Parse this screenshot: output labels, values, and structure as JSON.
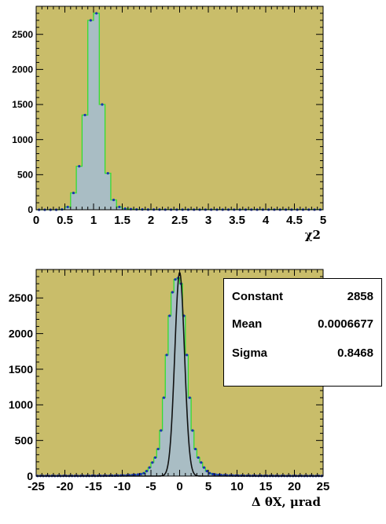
{
  "colors": {
    "plot_background": "#c9bd6a",
    "hist_fill": "#a9bdc4",
    "hist_line": "#33dd33",
    "points": "#1c33b0",
    "fit_line": "#111111"
  },
  "chart_data": [
    {
      "type": "histogram",
      "xlabel": "χ2",
      "ylabel": "",
      "xlim": [
        0,
        5
      ],
      "ylim": [
        0,
        2900
      ],
      "x_ticks": [
        0,
        0.5,
        1,
        1.5,
        2,
        2.5,
        3,
        3.5,
        4,
        4.5,
        5
      ],
      "x_tick_labels": [
        "0",
        "0.5",
        "1",
        "1.5",
        "2",
        "2.5",
        "3",
        "3.5",
        "4",
        "4.5",
        "5"
      ],
      "y_ticks": [
        0,
        500,
        1000,
        1500,
        2000,
        2500
      ],
      "y_tick_labels": [
        "0",
        "500",
        "1000",
        "1500",
        "2000",
        "2500"
      ],
      "bin_width": 0.1,
      "bin_centers": [
        0.05,
        0.15,
        0.25,
        0.35,
        0.45,
        0.55,
        0.65,
        0.75,
        0.85,
        0.95,
        1.05,
        1.15,
        1.25,
        1.35,
        1.45,
        1.55,
        1.65,
        1.75,
        1.85,
        1.95,
        2.05,
        2.15,
        2.25,
        2.35,
        2.45,
        2.55,
        2.65,
        2.75,
        2.85,
        2.95,
        3.05,
        3.15,
        3.25,
        3.35,
        3.45,
        3.55,
        3.65,
        3.75,
        3.85,
        3.95,
        4.05,
        4.15,
        4.25,
        4.35,
        4.45,
        4.55,
        4.65,
        4.75,
        4.85,
        4.95
      ],
      "values": [
        0,
        0,
        0,
        0,
        5,
        40,
        240,
        620,
        1350,
        2700,
        2800,
        1500,
        520,
        140,
        40,
        15,
        8,
        5,
        4,
        3,
        3,
        3,
        2,
        2,
        2,
        2,
        2,
        2,
        2,
        2,
        2,
        2,
        2,
        2,
        2,
        2,
        2,
        2,
        2,
        2,
        2,
        2,
        2,
        2,
        2,
        2,
        2,
        2,
        2,
        2
      ]
    },
    {
      "type": "histogram",
      "xlabel": "Δ θX, μrad",
      "ylabel": "",
      "xlim": [
        -25,
        25
      ],
      "ylim": [
        0,
        2900
      ],
      "x_ticks": [
        -25,
        -20,
        -15,
        -10,
        -5,
        0,
        5,
        10,
        15,
        20,
        25
      ],
      "x_tick_labels": [
        "-25",
        "-20",
        "-15",
        "-10",
        "-5",
        "0",
        "5",
        "10",
        "15",
        "20",
        "25"
      ],
      "y_ticks": [
        0,
        500,
        1000,
        1500,
        2000,
        2500
      ],
      "y_tick_labels": [
        "0",
        "500",
        "1000",
        "1500",
        "2000",
        "2500"
      ],
      "bin_width": 0.5,
      "bin_centers": [
        -24.75,
        -24.25,
        -23.75,
        -23.25,
        -22.75,
        -22.25,
        -21.75,
        -21.25,
        -20.75,
        -20.25,
        -19.75,
        -19.25,
        -18.75,
        -18.25,
        -17.75,
        -17.25,
        -16.75,
        -16.25,
        -15.75,
        -15.25,
        -14.75,
        -14.25,
        -13.75,
        -13.25,
        -12.75,
        -12.25,
        -11.75,
        -11.25,
        -10.75,
        -10.25,
        -9.75,
        -9.25,
        -8.75,
        -8.25,
        -7.75,
        -7.25,
        -6.75,
        -6.25,
        -5.75,
        -5.25,
        -4.75,
        -4.25,
        -3.75,
        -3.25,
        -2.75,
        -2.25,
        -1.75,
        -1.25,
        -0.75,
        -0.25,
        0.25,
        0.75,
        1.25,
        1.75,
        2.25,
        2.75,
        3.25,
        3.75,
        4.25,
        4.75,
        5.25,
        5.75,
        6.25,
        6.75,
        7.25,
        7.75,
        8.25,
        8.75,
        9.25,
        9.75,
        10.25,
        10.75,
        11.25,
        11.75,
        12.25,
        12.75,
        13.25,
        13.75,
        14.25,
        14.75,
        15.25,
        15.75,
        16.25,
        16.75,
        17.25,
        17.75,
        18.25,
        18.75,
        19.25,
        19.75,
        20.25,
        20.75,
        21.25,
        21.75,
        22.25,
        22.75,
        23.25,
        23.75,
        24.25,
        24.75
      ],
      "values": [
        2,
        3,
        2,
        3,
        2,
        3,
        2,
        3,
        2,
        3,
        3,
        2,
        3,
        3,
        2,
        3,
        3,
        3,
        3,
        4,
        3,
        4,
        4,
        4,
        5,
        5,
        6,
        6,
        7,
        8,
        9,
        10,
        12,
        14,
        17,
        22,
        28,
        40,
        70,
        120,
        190,
        260,
        380,
        640,
        1100,
        1700,
        2250,
        2580,
        2760,
        2780,
        2700,
        2250,
        1700,
        1100,
        640,
        380,
        260,
        190,
        120,
        70,
        40,
        28,
        22,
        17,
        14,
        12,
        10,
        9,
        8,
        7,
        6,
        6,
        5,
        5,
        4,
        4,
        4,
        3,
        4,
        3,
        3,
        3,
        3,
        3,
        2,
        3,
        3,
        2,
        3,
        2,
        3,
        2,
        3,
        2,
        2,
        3,
        2,
        2,
        3,
        2
      ],
      "fit": {
        "function": "gaus",
        "constant": 2858,
        "mean": 0.0006677,
        "sigma": 0.8468
      },
      "stats": [
        {
          "label": "Constant",
          "value": "2858"
        },
        {
          "label": "Mean",
          "value": "0.0006677"
        },
        {
          "label": "Sigma",
          "value": "0.8468"
        }
      ]
    }
  ]
}
